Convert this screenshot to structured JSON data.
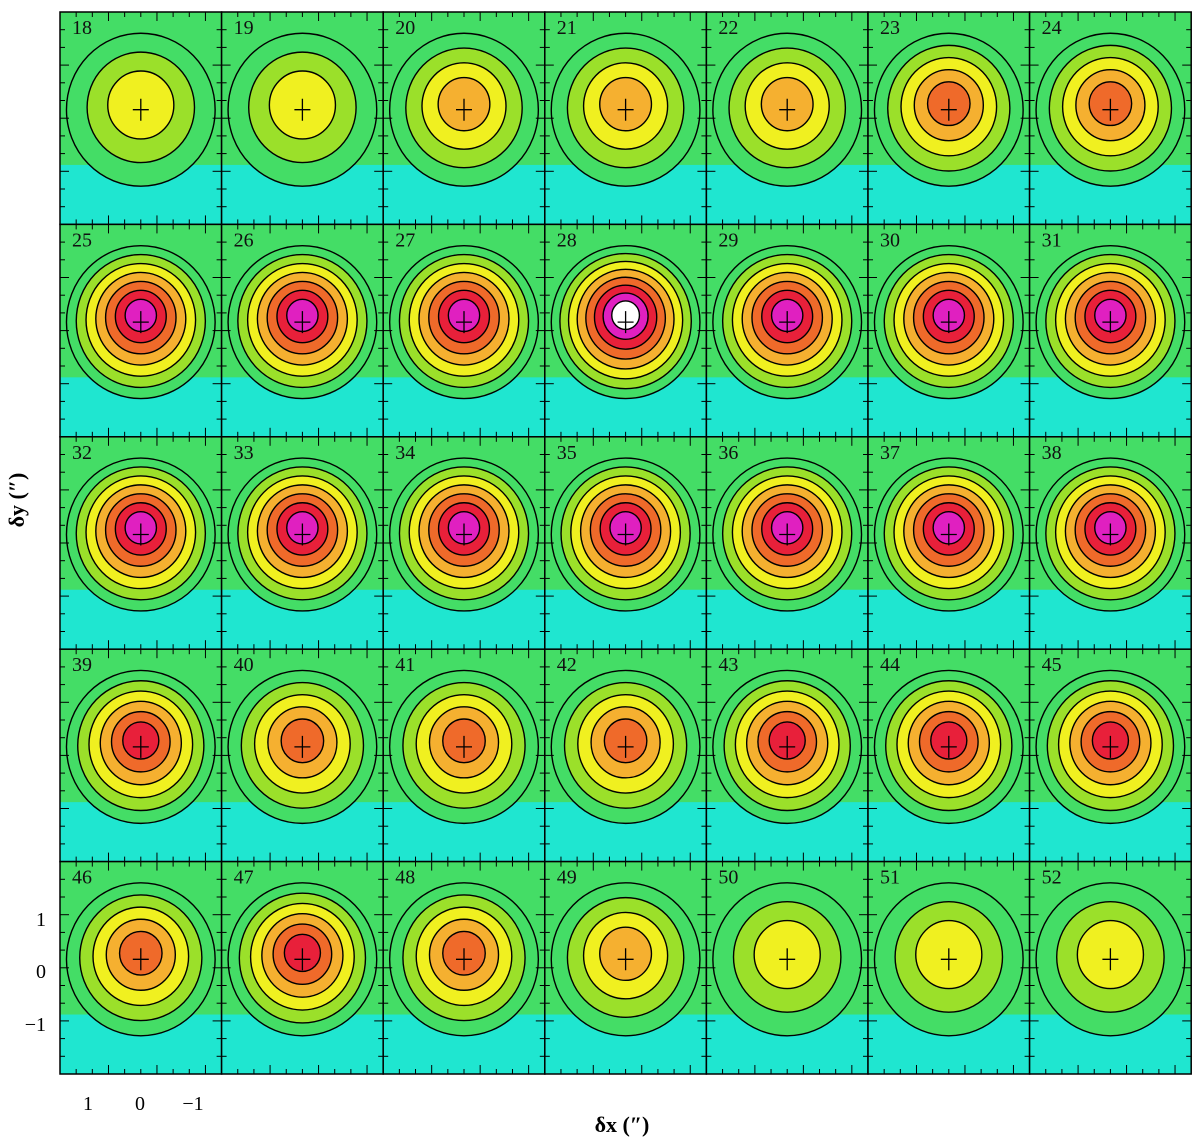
{
  "chart_data": {
    "type": "heatmap",
    "description_kind": "channel map grid",
    "xlabel": "δx (″)",
    "ylabel": "δy (″)",
    "x_ticks": [
      1,
      0,
      -1
    ],
    "x_tick_labels": [
      "1",
      "0",
      "−1"
    ],
    "y_ticks": [
      1,
      0,
      -1
    ],
    "y_tick_labels": [
      "1",
      "0",
      "−1"
    ],
    "xlim": [
      1.6,
      -1.6
    ],
    "ylim": [
      -2.0,
      1.9
    ],
    "grid_rows": 5,
    "grid_cols": 7,
    "panel_labels": [
      "18",
      "19",
      "20",
      "21",
      "22",
      "23",
      "24",
      "25",
      "26",
      "27",
      "28",
      "29",
      "30",
      "31",
      "32",
      "33",
      "34",
      "35",
      "36",
      "37",
      "38",
      "39",
      "40",
      "41",
      "42",
      "43",
      "44",
      "45",
      "46",
      "47",
      "48",
      "49",
      "50",
      "51",
      "52"
    ],
    "colormap": [
      "#1fe6d0",
      "#44dd66",
      "#9be02a",
      "#f0f020",
      "#f5b030",
      "#ef6a2a",
      "#e8203a",
      "#e020c0",
      "#ffffff"
    ],
    "panel_peak_levels": [
      0.4,
      0.38,
      0.45,
      0.48,
      0.52,
      0.58,
      0.65,
      0.85,
      0.88,
      0.92,
      0.95,
      0.9,
      0.88,
      0.85,
      0.88,
      0.9,
      0.9,
      0.9,
      0.9,
      0.88,
      0.85,
      0.8,
      0.65,
      0.6,
      0.62,
      0.7,
      0.72,
      0.72,
      0.65,
      0.72,
      0.68,
      0.5,
      0.42,
      0.4,
      0.38
    ]
  }
}
